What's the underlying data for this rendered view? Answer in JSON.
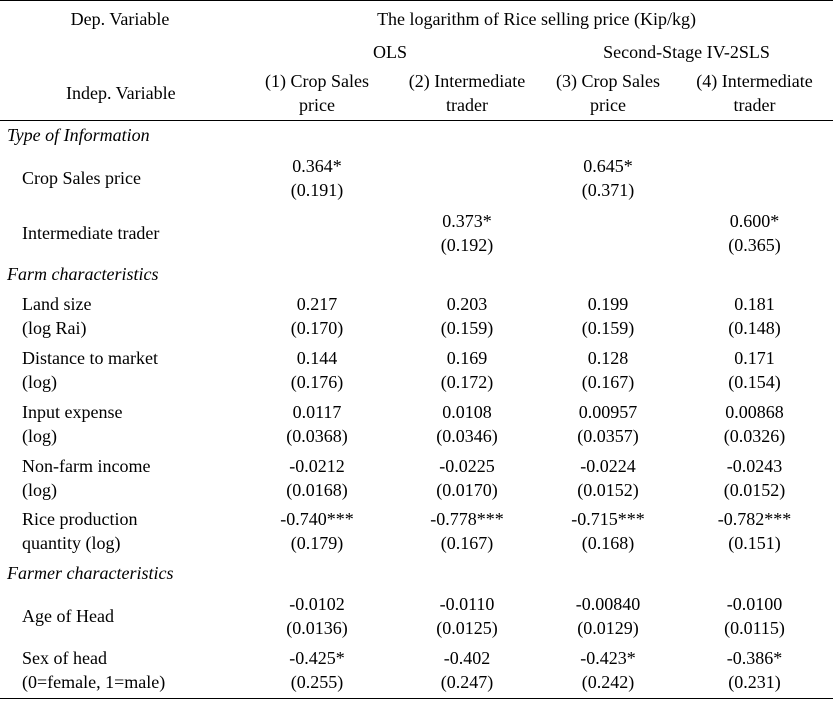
{
  "header": {
    "dep_label": "Dep. Variable",
    "dep_title": "The logarithm of Rice selling price (Kip/kg)",
    "group_ols": "OLS",
    "group_iv": "Second-Stage IV-2SLS",
    "indep_label": "Indep. Variable",
    "columns": [
      {
        "line1": "(1) Crop Sales",
        "line2": "price"
      },
      {
        "line1": "(2) Intermediate",
        "line2": "trader"
      },
      {
        "line1": "(3) Crop Sales",
        "line2": "price"
      },
      {
        "line1": "(4) Intermediate",
        "line2": "trader"
      }
    ]
  },
  "sections": {
    "info": "Type of Information",
    "farm": "Farm characteristics",
    "farmer": "Farmer characteristics"
  },
  "rows": [
    {
      "label1": "Crop Sales price",
      "label2": "",
      "coef": [
        "0.364*",
        "",
        "0.645*",
        ""
      ],
      "se": [
        "(0.191)",
        "",
        "(0.371)",
        ""
      ]
    },
    {
      "label1": "Intermediate trader",
      "label2": "",
      "coef": [
        "",
        "0.373*",
        "",
        "0.600*"
      ],
      "se": [
        "",
        "(0.192)",
        "",
        "(0.365)"
      ]
    },
    {
      "label1": "Land size",
      "label2": "(log Rai)",
      "coef": [
        "0.217",
        "0.203",
        "0.199",
        "0.181"
      ],
      "se": [
        "(0.170)",
        "(0.159)",
        "(0.159)",
        "(0.148)"
      ]
    },
    {
      "label1": "Distance to market",
      "label2": "(log)",
      "coef": [
        "0.144",
        "0.169",
        "0.128",
        "0.171"
      ],
      "se": [
        "(0.176)",
        "(0.172)",
        "(0.167)",
        "(0.154)"
      ]
    },
    {
      "label1": "Input expense",
      "label2": "(log)",
      "coef": [
        "0.0117",
        "0.0108",
        "0.00957",
        "0.00868"
      ],
      "se": [
        "(0.0368)",
        "(0.0346)",
        "(0.0357)",
        "(0.0326)"
      ]
    },
    {
      "label1": "Non-farm income",
      "label2": "(log)",
      "coef": [
        "-0.0212",
        "-0.0225",
        "-0.0224",
        "-0.0243"
      ],
      "se": [
        "(0.0168)",
        "(0.0170)",
        "(0.0152)",
        "(0.0152)"
      ]
    },
    {
      "label1": "Rice production",
      "label2": "quantity (log)",
      "coef": [
        "-0.740***",
        "-0.778***",
        "-0.715***",
        "-0.782***"
      ],
      "se": [
        "(0.179)",
        "(0.167)",
        "(0.168)",
        "(0.151)"
      ]
    },
    {
      "label1": "Age of Head",
      "label2": "",
      "coef": [
        "-0.0102",
        "-0.0110",
        "-0.00840",
        "-0.0100"
      ],
      "se": [
        "(0.0136)",
        "(0.0125)",
        "(0.0129)",
        "(0.0115)"
      ]
    },
    {
      "label1": "Sex of head",
      "label2": "(0=female, 1=male)",
      "coef": [
        "-0.425*",
        "-0.402",
        "-0.423*",
        "-0.386*"
      ],
      "se": [
        "(0.255)",
        "(0.247)",
        "(0.242)",
        "(0.231)"
      ]
    }
  ]
}
